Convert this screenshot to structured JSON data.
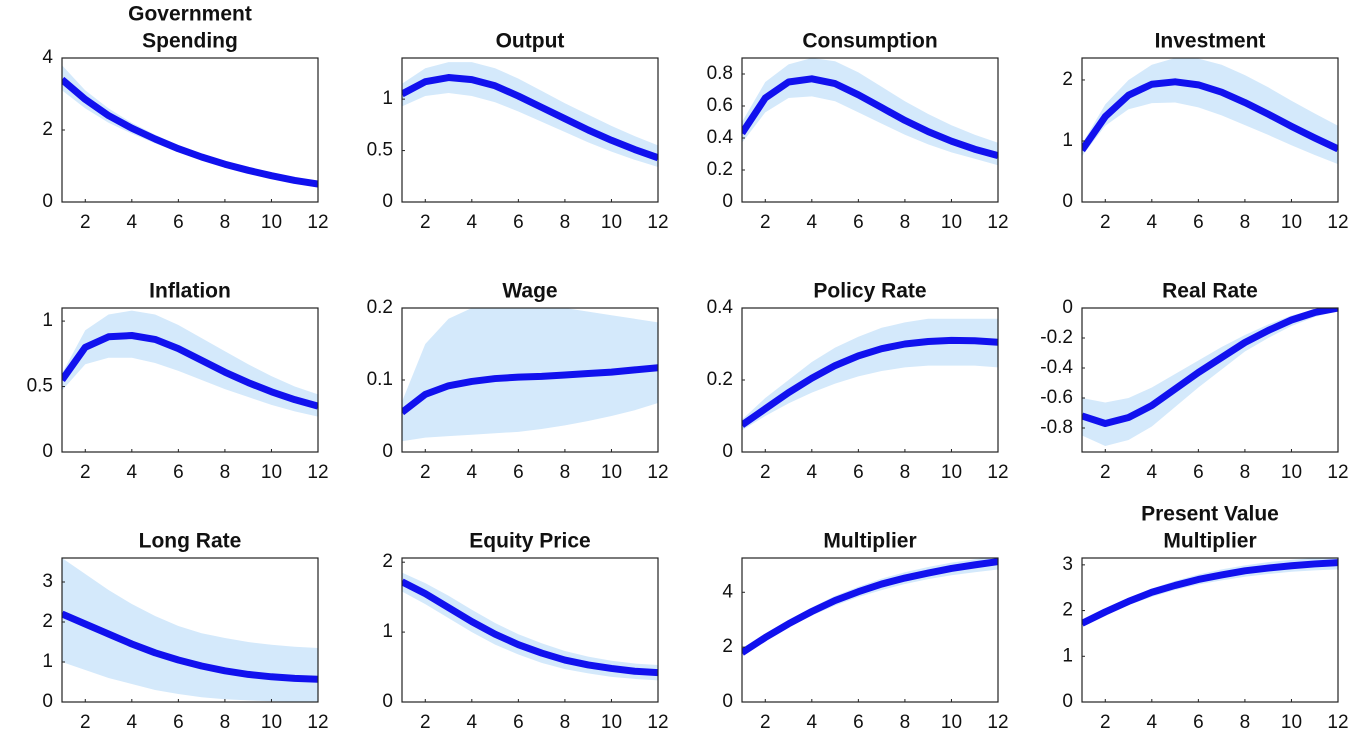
{
  "chart_data": [
    {
      "type": "line",
      "title": [
        "Government",
        "Spending"
      ],
      "x": [
        1,
        2,
        3,
        4,
        5,
        6,
        7,
        8,
        9,
        10,
        11,
        12
      ],
      "xlim": [
        1,
        12
      ],
      "xticks": [
        2,
        4,
        6,
        8,
        10,
        12
      ],
      "ylim": [
        0,
        4
      ],
      "yticks": [
        0,
        2,
        4
      ],
      "color": "#1111ee",
      "band_color": "#d4e9fb",
      "values": [
        3.4,
        2.85,
        2.4,
        2.05,
        1.75,
        1.48,
        1.25,
        1.05,
        0.88,
        0.73,
        0.6,
        0.5
      ],
      "band": {
        "upper": [
          3.8,
          3.1,
          2.6,
          2.2,
          1.87,
          1.58,
          1.33,
          1.12,
          0.94,
          0.79,
          0.66,
          0.55
        ],
        "lower": [
          3.1,
          2.6,
          2.2,
          1.9,
          1.63,
          1.38,
          1.17,
          0.98,
          0.82,
          0.68,
          0.55,
          0.45
        ]
      }
    },
    {
      "type": "line",
      "title": [
        "Output"
      ],
      "x": [
        1,
        2,
        3,
        4,
        5,
        6,
        7,
        8,
        9,
        10,
        11,
        12
      ],
      "xlim": [
        1,
        12
      ],
      "xticks": [
        2,
        4,
        6,
        8,
        10,
        12
      ],
      "ylim": [
        0,
        1.4
      ],
      "yticks": [
        0,
        0.5,
        1
      ],
      "color": "#1111ee",
      "band_color": "#d4e9fb",
      "values": [
        1.05,
        1.17,
        1.21,
        1.19,
        1.13,
        1.03,
        0.92,
        0.81,
        0.7,
        0.6,
        0.51,
        0.43
      ],
      "band": {
        "upper": [
          1.15,
          1.3,
          1.36,
          1.36,
          1.3,
          1.2,
          1.08,
          0.96,
          0.85,
          0.74,
          0.64,
          0.55
        ],
        "lower": [
          0.93,
          1.03,
          1.06,
          1.03,
          0.97,
          0.88,
          0.78,
          0.68,
          0.58,
          0.49,
          0.41,
          0.34
        ]
      }
    },
    {
      "type": "line",
      "title": [
        "Consumption"
      ],
      "x": [
        1,
        2,
        3,
        4,
        5,
        6,
        7,
        8,
        9,
        10,
        11,
        12
      ],
      "xlim": [
        1,
        12
      ],
      "xticks": [
        2,
        4,
        6,
        8,
        10,
        12
      ],
      "ylim": [
        0,
        0.9
      ],
      "yticks": [
        0,
        0.2,
        0.4,
        0.6,
        0.8
      ],
      "color": "#1111ee",
      "band_color": "#d4e9fb",
      "values": [
        0.43,
        0.65,
        0.75,
        0.77,
        0.74,
        0.67,
        0.59,
        0.51,
        0.44,
        0.38,
        0.33,
        0.29
      ],
      "band": {
        "upper": [
          0.5,
          0.75,
          0.86,
          0.9,
          0.88,
          0.81,
          0.72,
          0.63,
          0.55,
          0.48,
          0.42,
          0.37
        ],
        "lower": [
          0.37,
          0.56,
          0.65,
          0.66,
          0.63,
          0.56,
          0.49,
          0.42,
          0.36,
          0.31,
          0.27,
          0.23
        ]
      }
    },
    {
      "type": "line",
      "title": [
        "Investment"
      ],
      "x": [
        1,
        2,
        3,
        4,
        5,
        6,
        7,
        8,
        9,
        10,
        11,
        12
      ],
      "xlim": [
        1,
        12
      ],
      "xticks": [
        2,
        4,
        6,
        8,
        10,
        12
      ],
      "ylim": [
        0,
        2.36
      ],
      "yticks": [
        0,
        1,
        2
      ],
      "color": "#1111ee",
      "band_color": "#d4e9fb",
      "values": [
        0.85,
        1.4,
        1.75,
        1.93,
        1.97,
        1.92,
        1.8,
        1.63,
        1.44,
        1.24,
        1.05,
        0.87
      ],
      "band": {
        "upper": [
          0.95,
          1.6,
          2.0,
          2.25,
          2.36,
          2.35,
          2.25,
          2.08,
          1.88,
          1.66,
          1.45,
          1.25
        ],
        "lower": [
          0.75,
          1.25,
          1.52,
          1.62,
          1.63,
          1.55,
          1.42,
          1.26,
          1.1,
          0.93,
          0.77,
          0.62
        ]
      }
    },
    {
      "type": "line",
      "title": [
        "Inflation"
      ],
      "x": [
        1,
        2,
        3,
        4,
        5,
        6,
        7,
        8,
        9,
        10,
        11,
        12
      ],
      "xlim": [
        1,
        12
      ],
      "xticks": [
        2,
        4,
        6,
        8,
        10,
        12
      ],
      "ylim": [
        0,
        1.1
      ],
      "yticks": [
        0,
        0.5,
        1
      ],
      "color": "#1111ee",
      "band_color": "#d4e9fb",
      "values": [
        0.55,
        0.8,
        0.88,
        0.89,
        0.86,
        0.79,
        0.7,
        0.61,
        0.53,
        0.46,
        0.4,
        0.35
      ],
      "band": {
        "upper": [
          0.6,
          0.93,
          1.05,
          1.08,
          1.05,
          0.97,
          0.87,
          0.77,
          0.67,
          0.58,
          0.5,
          0.44
        ],
        "lower": [
          0.47,
          0.67,
          0.72,
          0.72,
          0.68,
          0.62,
          0.55,
          0.48,
          0.42,
          0.36,
          0.31,
          0.27
        ]
      }
    },
    {
      "type": "line",
      "title": [
        "Wage"
      ],
      "x": [
        1,
        2,
        3,
        4,
        5,
        6,
        7,
        8,
        9,
        10,
        11,
        12
      ],
      "xlim": [
        1,
        12
      ],
      "xticks": [
        2,
        4,
        6,
        8,
        10,
        12
      ],
      "ylim": [
        0,
        0.2
      ],
      "yticks": [
        0,
        0.1,
        0.2
      ],
      "color": "#1111ee",
      "band_color": "#d4e9fb",
      "values": [
        0.055,
        0.08,
        0.092,
        0.098,
        0.102,
        0.104,
        0.105,
        0.107,
        0.109,
        0.111,
        0.114,
        0.117
      ],
      "band": {
        "upper": [
          0.07,
          0.15,
          0.185,
          0.2,
          0.21,
          0.21,
          0.205,
          0.2,
          0.195,
          0.19,
          0.185,
          0.18
        ],
        "lower": [
          0.015,
          0.02,
          0.022,
          0.024,
          0.026,
          0.028,
          0.032,
          0.037,
          0.043,
          0.05,
          0.058,
          0.068
        ]
      }
    },
    {
      "type": "line",
      "title": [
        "Policy Rate"
      ],
      "x": [
        1,
        2,
        3,
        4,
        5,
        6,
        7,
        8,
        9,
        10,
        11,
        12
      ],
      "xlim": [
        1,
        12
      ],
      "xticks": [
        2,
        4,
        6,
        8,
        10,
        12
      ],
      "ylim": [
        0,
        0.4
      ],
      "yticks": [
        0,
        0.2,
        0.4
      ],
      "color": "#1111ee",
      "band_color": "#d4e9fb",
      "values": [
        0.075,
        0.12,
        0.165,
        0.205,
        0.24,
        0.267,
        0.287,
        0.3,
        0.307,
        0.31,
        0.309,
        0.305
      ],
      "band": {
        "upper": [
          0.09,
          0.15,
          0.2,
          0.25,
          0.29,
          0.32,
          0.345,
          0.36,
          0.37,
          0.37,
          0.37,
          0.37
        ],
        "lower": [
          0.06,
          0.1,
          0.135,
          0.165,
          0.19,
          0.21,
          0.225,
          0.235,
          0.24,
          0.24,
          0.24,
          0.235
        ]
      }
    },
    {
      "type": "line",
      "title": [
        "Real Rate"
      ],
      "x": [
        1,
        2,
        3,
        4,
        5,
        6,
        7,
        8,
        9,
        10,
        11,
        12
      ],
      "xlim": [
        1,
        12
      ],
      "xticks": [
        2,
        4,
        6,
        8,
        10,
        12
      ],
      "ylim": [
        -0.96,
        0
      ],
      "yticks": [
        -0.8,
        -0.6,
        -0.4,
        -0.2,
        0
      ],
      "color": "#1111ee",
      "band_color": "#d4e9fb",
      "values": [
        -0.72,
        -0.77,
        -0.73,
        -0.65,
        -0.54,
        -0.43,
        -0.33,
        -0.23,
        -0.15,
        -0.08,
        -0.03,
        0
      ],
      "band": {
        "upper": [
          -0.6,
          -0.63,
          -0.6,
          -0.53,
          -0.44,
          -0.35,
          -0.26,
          -0.18,
          -0.11,
          -0.05,
          -0.01,
          0.01
        ],
        "lower": [
          -0.85,
          -0.92,
          -0.88,
          -0.79,
          -0.66,
          -0.53,
          -0.41,
          -0.29,
          -0.2,
          -0.12,
          -0.06,
          -0.02
        ]
      }
    },
    {
      "type": "line",
      "title": [
        "Long Rate"
      ],
      "x": [
        1,
        2,
        3,
        4,
        5,
        6,
        7,
        8,
        9,
        10,
        11,
        12
      ],
      "xlim": [
        1,
        12
      ],
      "xticks": [
        2,
        4,
        6,
        8,
        10,
        12
      ],
      "ylim": [
        0,
        3.6
      ],
      "yticks": [
        0,
        1,
        2,
        3
      ],
      "color": "#1111ee",
      "band_color": "#d4e9fb",
      "values": [
        2.2,
        1.95,
        1.7,
        1.45,
        1.23,
        1.05,
        0.9,
        0.78,
        0.69,
        0.63,
        0.59,
        0.57
      ],
      "band": {
        "upper": [
          3.6,
          3.2,
          2.8,
          2.45,
          2.15,
          1.9,
          1.72,
          1.6,
          1.5,
          1.43,
          1.38,
          1.35
        ],
        "lower": [
          1.0,
          0.8,
          0.6,
          0.45,
          0.3,
          0.2,
          0.12,
          0.07,
          0.04,
          0.02,
          0.01,
          0.0
        ]
      }
    },
    {
      "type": "line",
      "title": [
        "Equity Price"
      ],
      "x": [
        1,
        2,
        3,
        4,
        5,
        6,
        7,
        8,
        9,
        10,
        11,
        12
      ],
      "xlim": [
        1,
        12
      ],
      "xticks": [
        2,
        4,
        6,
        8,
        10,
        12
      ],
      "ylim": [
        0,
        2.06
      ],
      "yticks": [
        0,
        1,
        2
      ],
      "color": "#1111ee",
      "band_color": "#d4e9fb",
      "values": [
        1.72,
        1.55,
        1.35,
        1.15,
        0.97,
        0.82,
        0.7,
        0.6,
        0.53,
        0.48,
        0.44,
        0.42
      ],
      "band": {
        "upper": [
          1.85,
          1.7,
          1.52,
          1.32,
          1.13,
          0.97,
          0.84,
          0.73,
          0.65,
          0.59,
          0.55,
          0.53
        ],
        "lower": [
          1.58,
          1.4,
          1.2,
          1.0,
          0.82,
          0.68,
          0.56,
          0.47,
          0.41,
          0.36,
          0.33,
          0.31
        ]
      }
    },
    {
      "type": "line",
      "title": [
        "Multiplier"
      ],
      "x": [
        1,
        2,
        3,
        4,
        5,
        6,
        7,
        8,
        9,
        10,
        11,
        12
      ],
      "xlim": [
        1,
        12
      ],
      "xticks": [
        2,
        4,
        6,
        8,
        10,
        12
      ],
      "ylim": [
        0,
        5.25
      ],
      "yticks": [
        0,
        2,
        4
      ],
      "color": "#1111ee",
      "band_color": "#d4e9fb",
      "values": [
        1.8,
        2.35,
        2.85,
        3.3,
        3.7,
        4.02,
        4.3,
        4.52,
        4.7,
        4.87,
        5.0,
        5.12
      ],
      "band": {
        "upper": [
          1.85,
          2.45,
          2.98,
          3.45,
          3.87,
          4.2,
          4.5,
          4.73,
          4.92,
          5.08,
          5.2,
          5.3
        ],
        "lower": [
          1.75,
          2.28,
          2.74,
          3.15,
          3.52,
          3.83,
          4.08,
          4.3,
          4.48,
          4.62,
          4.73,
          4.83
        ]
      }
    },
    {
      "type": "line",
      "title": [
        "Present Value",
        "Multiplier"
      ],
      "x": [
        1,
        2,
        3,
        4,
        5,
        6,
        7,
        8,
        9,
        10,
        11,
        12
      ],
      "xlim": [
        1,
        12
      ],
      "xticks": [
        2,
        4,
        6,
        8,
        10,
        12
      ],
      "ylim": [
        0,
        3.15
      ],
      "yticks": [
        0,
        1,
        2,
        3
      ],
      "color": "#1111ee",
      "band_color": "#d4e9fb",
      "values": [
        1.72,
        1.97,
        2.2,
        2.4,
        2.55,
        2.68,
        2.78,
        2.87,
        2.93,
        2.98,
        3.02,
        3.05
      ],
      "band": {
        "upper": [
          1.75,
          2.02,
          2.27,
          2.48,
          2.65,
          2.79,
          2.9,
          2.99,
          3.06,
          3.11,
          3.15,
          3.18
        ],
        "lower": [
          1.68,
          1.92,
          2.12,
          2.3,
          2.45,
          2.57,
          2.66,
          2.74,
          2.8,
          2.85,
          2.88,
          2.9
        ]
      }
    }
  ]
}
